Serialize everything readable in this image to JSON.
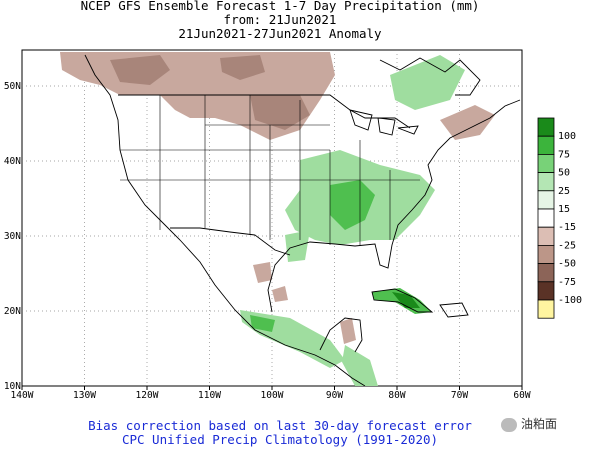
{
  "title": {
    "line1": "NCEP GFS Ensemble Forecast 1-7 Day Precipitation (mm)",
    "line2": "from: 21Jun2021",
    "line3": "21Jun2021-27Jun2021 Anomaly"
  },
  "axes": {
    "lon_ticks": [
      "140W",
      "130W",
      "120W",
      "110W",
      "100W",
      "90W",
      "80W",
      "70W",
      "60W"
    ],
    "lat_ticks": [
      "10N",
      "20N",
      "30N",
      "40N",
      "50N"
    ]
  },
  "legend": {
    "bins": [
      {
        "label": "100",
        "color": "#1a8a1a"
      },
      {
        "label": "75",
        "color": "#3cb43c"
      },
      {
        "label": "50",
        "color": "#78d278"
      },
      {
        "label": "25",
        "color": "#b4e6b4"
      },
      {
        "label": "15",
        "color": "#e6f5e6"
      },
      {
        "label": "-15",
        "color": "#ffffff"
      },
      {
        "label": "-25",
        "color": "#dcbeb4"
      },
      {
        "label": "-50",
        "color": "#bc9688"
      },
      {
        "label": "-75",
        "color": "#8c6458"
      },
      {
        "label": "-100",
        "color": "#5a3226"
      },
      {
        "label": "",
        "color": "#fff5a0"
      }
    ]
  },
  "footer": {
    "line1": "Bias correction based on last 30-day forecast error",
    "line2": "CPC Unified Precip Climatology (1991-2020)"
  },
  "watermark": "油粕面",
  "colors": {
    "dry": "#c8a89e",
    "dry2": "#a8857a",
    "wet": "#9fdd9f",
    "wet2": "#4fbf4f",
    "wet3": "#1a8a1a",
    "axis": "#000000",
    "foot": "#1a2bd6"
  }
}
